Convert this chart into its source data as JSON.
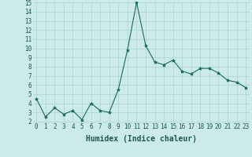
{
  "x": [
    0,
    1,
    2,
    3,
    4,
    5,
    6,
    7,
    8,
    9,
    10,
    11,
    12,
    13,
    14,
    15,
    16,
    17,
    18,
    19,
    20,
    21,
    22,
    23
  ],
  "y": [
    4.5,
    2.5,
    3.5,
    2.8,
    3.2,
    2.2,
    4.0,
    3.2,
    3.0,
    5.5,
    9.8,
    15.0,
    10.3,
    8.5,
    8.2,
    8.7,
    7.5,
    7.2,
    7.8,
    7.8,
    7.3,
    6.5,
    6.3,
    5.7
  ],
  "xlabel": "Humidex (Indice chaleur)",
  "ylim_min": 2,
  "ylim_max": 15,
  "xlim_min": 0,
  "xlim_max": 23,
  "yticks": [
    2,
    3,
    4,
    5,
    6,
    7,
    8,
    9,
    10,
    11,
    12,
    13,
    14,
    15
  ],
  "xticks": [
    0,
    1,
    2,
    3,
    4,
    5,
    6,
    7,
    8,
    9,
    10,
    11,
    12,
    13,
    14,
    15,
    16,
    17,
    18,
    19,
    20,
    21,
    22,
    23
  ],
  "line_color": "#1a6b5a",
  "marker": "*",
  "marker_size": 3,
  "bg_color": "#cceae7",
  "grid_color": "#aad4d0",
  "xlabel_fontsize": 7,
  "tick_fontsize": 5.5,
  "linewidth": 0.8
}
